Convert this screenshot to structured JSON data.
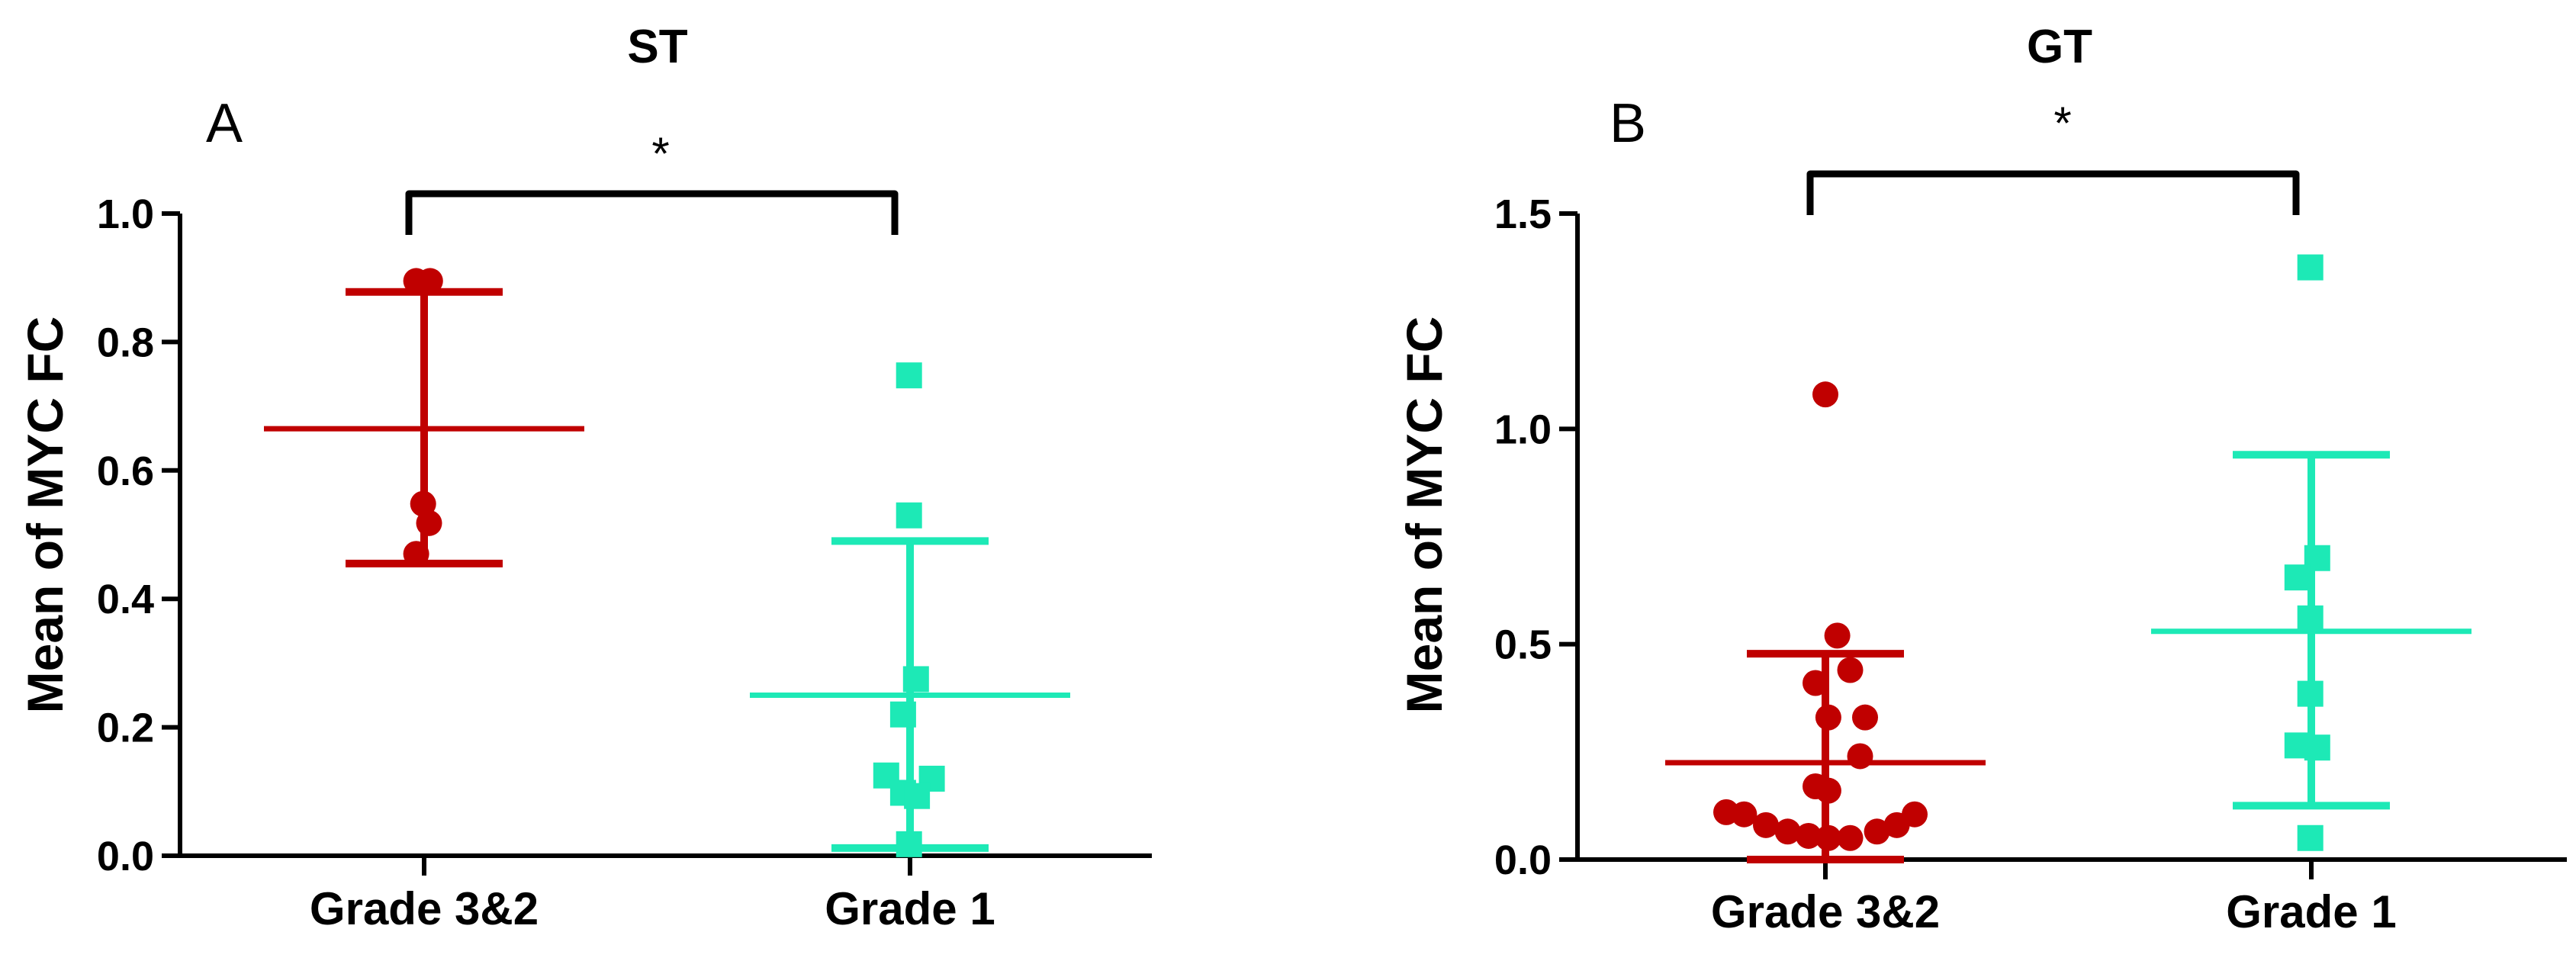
{
  "colors": {
    "group1": "#c00000",
    "group2": "#1de9b6",
    "axis": "#000000"
  },
  "chart_data": [
    {
      "type": "scatter",
      "panel": "A",
      "title": "ST",
      "ylabel": "Mean of MYC FC",
      "xlabel": "",
      "ylim": [
        0,
        1.0
      ],
      "yticks": [
        "0.0",
        "0.2",
        "0.4",
        "0.6",
        "0.8",
        "1.0"
      ],
      "categories": [
        "Grade 3&2",
        "Grade 1"
      ],
      "significance": "*",
      "groups": [
        {
          "name": "Grade 3&2",
          "marker": "circle",
          "color_key": "group1",
          "mean": 0.665,
          "sd_low": 0.455,
          "sd_high": 0.878,
          "points": [
            {
              "dx": -0.08,
              "y": 0.895
            },
            {
              "dx": 0.06,
              "y": 0.895
            },
            {
              "dx": -0.01,
              "y": 0.548
            },
            {
              "dx": 0.05,
              "y": 0.518
            },
            {
              "dx": -0.08,
              "y": 0.47
            }
          ]
        },
        {
          "name": "Grade 1",
          "marker": "square",
          "color_key": "group2",
          "mean": 0.25,
          "sd_low": 0.012,
          "sd_high": 0.49,
          "points": [
            {
              "dx": -0.01,
              "y": 0.748
            },
            {
              "dx": -0.01,
              "y": 0.53
            },
            {
              "dx": 0.06,
              "y": 0.275
            },
            {
              "dx": -0.07,
              "y": 0.22
            },
            {
              "dx": -0.24,
              "y": 0.125
            },
            {
              "dx": 0.22,
              "y": 0.12
            },
            {
              "dx": -0.07,
              "y": 0.098
            },
            {
              "dx": 0.07,
              "y": 0.093
            },
            {
              "dx": -0.01,
              "y": 0.018
            }
          ]
        }
      ]
    },
    {
      "type": "scatter",
      "panel": "B",
      "title": "GT",
      "ylabel": "Mean of MYC FC",
      "xlabel": "",
      "ylim": [
        0,
        1.5
      ],
      "yticks": [
        "0.0",
        "0.5",
        "1.0",
        "1.5"
      ],
      "categories": [
        "Grade 3&2",
        "Grade 1"
      ],
      "significance": "*",
      "groups": [
        {
          "name": "Grade 3&2",
          "marker": "circle",
          "color_key": "group1",
          "mean": 0.225,
          "sd_low": 0.0,
          "sd_high": 0.478,
          "points": [
            {
              "dx": 0.0,
              "y": 1.08
            },
            {
              "dx": 0.12,
              "y": 0.52
            },
            {
              "dx": 0.25,
              "y": 0.44
            },
            {
              "dx": -0.1,
              "y": 0.41
            },
            {
              "dx": 0.03,
              "y": 0.33
            },
            {
              "dx": 0.4,
              "y": 0.33
            },
            {
              "dx": 0.35,
              "y": 0.24
            },
            {
              "dx": -0.1,
              "y": 0.17
            },
            {
              "dx": 0.03,
              "y": 0.16
            },
            {
              "dx": -1.0,
              "y": 0.11
            },
            {
              "dx": -0.82,
              "y": 0.105
            },
            {
              "dx": 0.9,
              "y": 0.105
            },
            {
              "dx": -0.6,
              "y": 0.08
            },
            {
              "dx": 0.72,
              "y": 0.08
            },
            {
              "dx": -0.38,
              "y": 0.065
            },
            {
              "dx": 0.52,
              "y": 0.065
            },
            {
              "dx": -0.17,
              "y": 0.055
            },
            {
              "dx": 0.03,
              "y": 0.05
            },
            {
              "dx": 0.25,
              "y": 0.05
            }
          ]
        },
        {
          "name": "Grade 1",
          "marker": "square",
          "color_key": "group2",
          "mean": 0.53,
          "sd_low": 0.125,
          "sd_high": 0.94,
          "points": [
            {
              "dx": -0.01,
              "y": 1.375
            },
            {
              "dx": 0.06,
              "y": 0.7
            },
            {
              "dx": -0.14,
              "y": 0.655
            },
            {
              "dx": -0.01,
              "y": 0.56
            },
            {
              "dx": -0.01,
              "y": 0.385
            },
            {
              "dx": -0.14,
              "y": 0.265
            },
            {
              "dx": 0.06,
              "y": 0.26
            },
            {
              "dx": -0.01,
              "y": 0.05
            }
          ]
        }
      ]
    }
  ]
}
